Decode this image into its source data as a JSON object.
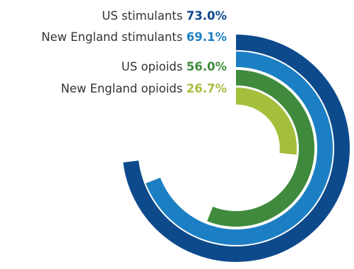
{
  "chart_data": {
    "type": "radial-bar",
    "series": [
      {
        "name": "US stimulants",
        "value": 73.0,
        "value_label": "73.0%",
        "color": "#0d4a8c"
      },
      {
        "name": "New England stimulants",
        "value": 69.1,
        "value_label": "69.1%",
        "color": "#1c7fc4"
      },
      {
        "name": "US opioids",
        "value": 56.0,
        "value_label": "56.0%",
        "color": "#3f8a3c"
      },
      {
        "name": "New England opioids",
        "value": 26.7,
        "value_label": "26.7%",
        "color": "#a4bf3c"
      }
    ],
    "max": 100,
    "start_angle_deg": 0,
    "direction": "clockwise"
  },
  "label_color": "#333333"
}
